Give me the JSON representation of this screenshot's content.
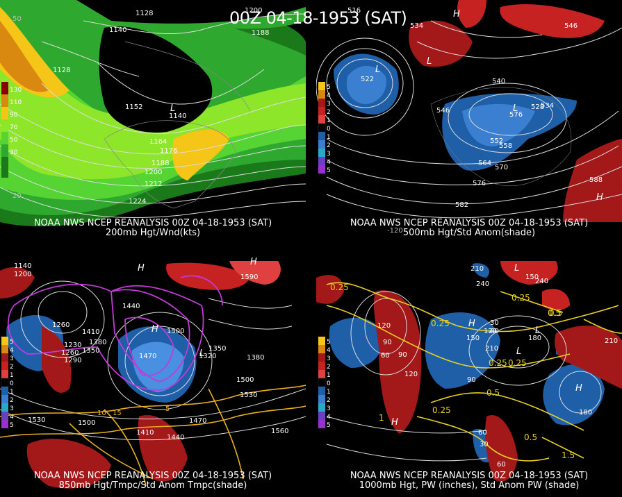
{
  "main_title": "00Z 04-18-1953 (SAT)",
  "panels": [
    {
      "id": "tl",
      "line1": "NOAA NWS NCEP REANALYSIS 00Z 04-18-1953 (SAT)",
      "line2": "200mb Hgt/Wnd(kts)",
      "colorbar": [
        "130",
        "110",
        "90",
        "70",
        "50",
        "30"
      ],
      "contour_labels": [
        "1128",
        "1140",
        "1200",
        "1188",
        "1128",
        "1152",
        "1140",
        "1164",
        "1176",
        "1188",
        "1200",
        "1212",
        "1224"
      ],
      "pressure_markers": [
        "L"
      ],
      "lat_labels": [
        "50",
        "20"
      ]
    },
    {
      "id": "tr",
      "line1": "NOAA NWS NCEP REANALYSIS 00Z 04-18-1953 (SAT)",
      "line2": "500mb Hgt/Std Anom(shade)",
      "colorbar": [
        "5",
        "4",
        "3",
        "2",
        "1",
        "0",
        "1",
        "2",
        "3",
        "4",
        "5"
      ],
      "contour_labels": [
        "516",
        "522",
        "534",
        "546",
        "552",
        "558",
        "564",
        "570",
        "576",
        "582",
        "588",
        "528",
        "534",
        "540",
        "546",
        "576",
        "522"
      ],
      "pressure_markers": [
        "L",
        "H",
        "L",
        "L",
        "H"
      ],
      "lon_labels": [
        "-120"
      ]
    },
    {
      "id": "bl",
      "line1": "NOAA NWS NCEP REANALYSIS 00Z 04-18-1953 (SAT)",
      "line2": "850mb Hgt/Tmpc/Std Anom Tmpc(shade)",
      "colorbar": [
        "5",
        "4",
        "3",
        "2",
        "1",
        "0",
        "1",
        "2",
        "3",
        "4",
        "5"
      ],
      "contour_labels": [
        "1140",
        "1200",
        "1260",
        "1230",
        "1260",
        "1290",
        "1410",
        "1380",
        "1350",
        "1440",
        "1470",
        "1500",
        "1320",
        "1350",
        "1380",
        "1500",
        "1530",
        "1470",
        "1530",
        "1500",
        "1410",
        "1440",
        "1560",
        "1590"
      ],
      "pressure_markers": [
        "H",
        "H",
        "L",
        "H"
      ],
      "temp_labels": [
        "10",
        "15",
        "5"
      ]
    },
    {
      "id": "br",
      "line1": "NOAA NWS NCEP REANALYSIS 00Z 04-18-1953 (SAT)",
      "line2": "1000mb Hgt, PW (inches), Std Anom PW (shade)",
      "colorbar": [
        "5",
        "4",
        "3",
        "2",
        "1",
        "0",
        "1",
        "2",
        "3",
        "4",
        "5"
      ],
      "contour_labels": [
        "210",
        "240",
        "150",
        "120",
        "90",
        "60",
        "30",
        "60",
        "90",
        "120",
        "150",
        "180",
        "210",
        "240",
        "180",
        "120",
        "60",
        "30",
        "90",
        "60",
        "210"
      ],
      "pw_labels": [
        "0.25",
        "0.25",
        "0.25",
        "0.25",
        "0.5",
        "0.5",
        "0.25",
        "0.5",
        "0.25",
        "1",
        "1.5",
        "0.5"
      ],
      "pressure_markers": [
        "L",
        "H",
        "L",
        "H",
        "H",
        "L"
      ]
    }
  ]
}
